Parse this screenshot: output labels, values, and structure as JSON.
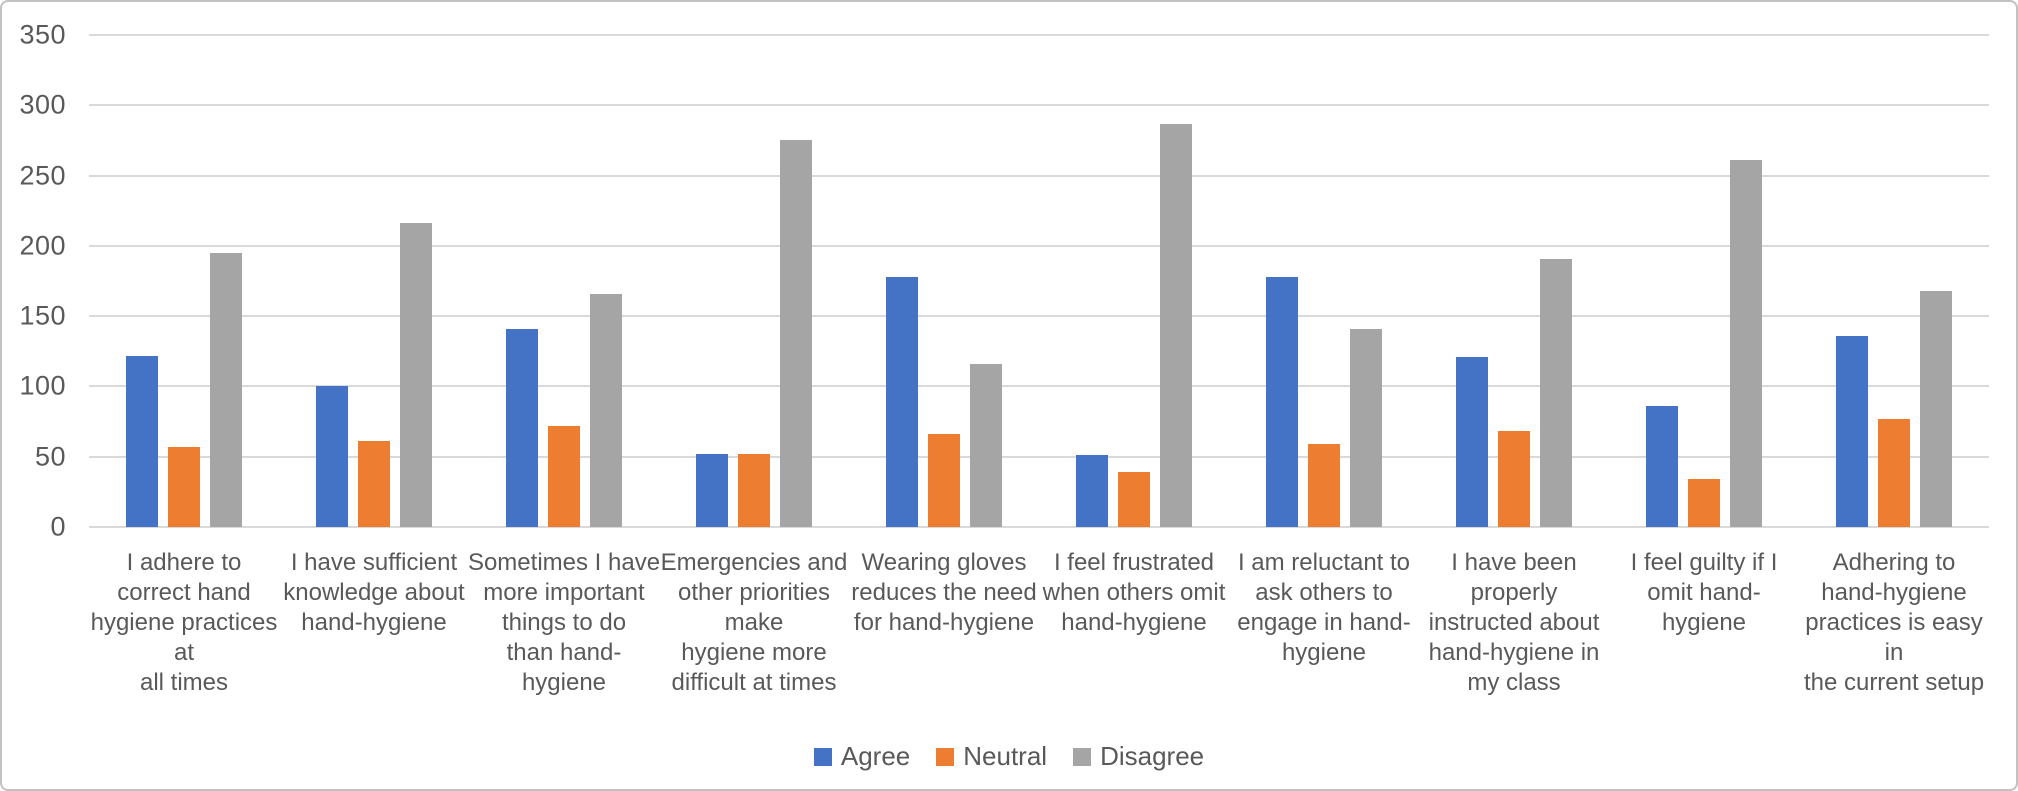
{
  "figure": {
    "background": "#ffffff",
    "border_color": "#c2c2c2",
    "text_color": "#595959",
    "gridline_color": "#d9d9d9"
  },
  "chart_data": {
    "type": "bar",
    "title": "",
    "xlabel": "",
    "ylabel": "",
    "ylim": [
      0,
      350
    ],
    "yticks": [
      0,
      50,
      100,
      150,
      200,
      250,
      300,
      350
    ],
    "grid": true,
    "legend_position": "bottom",
    "categories": [
      "I adhere to\ncorrect hand\nhygiene practices\nat\nall times",
      "I have sufficient\nknowledge about\nhand-hygiene",
      "Sometimes I have\nmore important\nthings to do\nthan hand-\nhygiene",
      "Emergencies and\nother priorities\nmake\nhygiene more\ndifficult at times",
      "Wearing gloves\nreduces the need\nfor hand-hygiene",
      "I feel frustrated\nwhen others omit\nhand-hygiene",
      "I am reluctant to\nask others to\nengage in hand-\nhygiene",
      "I have been\nproperly\ninstructed about\nhand-hygiene in\nmy class",
      "I feel guilty if I\nomit hand-\nhygiene",
      "Adhering to\nhand-hygiene\npractices is easy\nin\nthe current setup"
    ],
    "series": [
      {
        "name": "Agree",
        "color": "#4472C4",
        "values": [
          122,
          100,
          141,
          52,
          178,
          51,
          178,
          121,
          86,
          136
        ]
      },
      {
        "name": "Neutral",
        "color": "#ED7D31",
        "values": [
          57,
          61,
          72,
          52,
          66,
          39,
          59,
          68,
          34,
          77
        ]
      },
      {
        "name": "Disagree",
        "color": "#A5A5A5",
        "values": [
          195,
          216,
          166,
          275,
          116,
          287,
          141,
          191,
          261,
          168
        ]
      }
    ]
  },
  "legend": {
    "items": [
      {
        "label": "Agree",
        "color": "#4472C4"
      },
      {
        "label": "Neutral",
        "color": "#ED7D31"
      },
      {
        "label": "Disagree",
        "color": "#A5A5A5"
      }
    ]
  }
}
